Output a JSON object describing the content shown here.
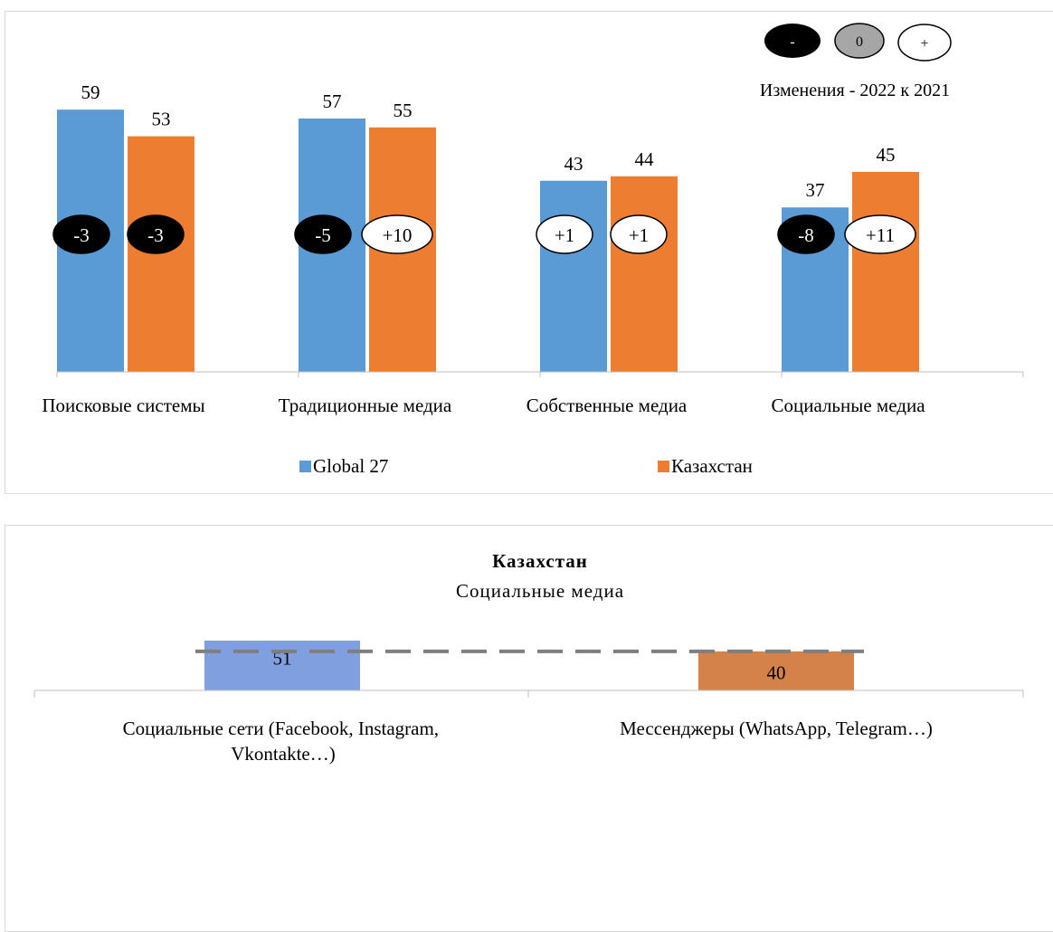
{
  "chart_data": [
    {
      "type": "bar",
      "categories": [
        "Поисковые системы",
        "Традиционные медиа",
        "Собственные медиа",
        "Социальные медиа"
      ],
      "series": [
        {
          "name": "Global 27",
          "values": [
            59,
            57,
            43,
            37
          ],
          "changes": [
            "-3",
            "-5",
            "+1",
            "-8"
          ],
          "change_signs": [
            "negative",
            "negative",
            "positive",
            "negative"
          ]
        },
        {
          "name": "Казахстан",
          "values": [
            53,
            55,
            44,
            45
          ],
          "changes": [
            "-3",
            "+10",
            "+1",
            "+11"
          ],
          "change_signs": [
            "negative",
            "positive",
            "positive",
            "positive"
          ]
        }
      ],
      "colors": {
        "Global 27": "#5b9bd5",
        "Казахстан": "#ed7d31"
      },
      "ylim": [
        0,
        80
      ],
      "legend_position": "bottom",
      "change_key": {
        "title": "Изменения - 2022 к 2021",
        "items": [
          "-",
          "0",
          "+"
        ]
      }
    },
    {
      "type": "bar",
      "title": "Казахстан",
      "subtitle": "Социальные медиа",
      "categories": [
        "Социальные сети (Facebook, Instagram, Vkontakte…)",
        "Мессенджеры (WhatsApp, Telegram…)"
      ],
      "values": [
        51,
        40
      ],
      "colors": [
        "#7f9fde",
        "#d4814a"
      ],
      "reference_line": 40,
      "ylim": [
        0,
        60
      ]
    }
  ]
}
